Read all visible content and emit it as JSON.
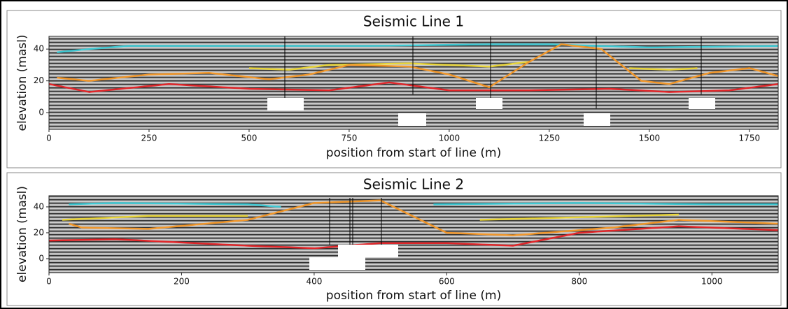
{
  "chart_data": [
    {
      "type": "line",
      "title": "Seismic Line 1",
      "xlabel": "position from start of line (m)",
      "ylabel": "elevation (masl)",
      "xlim": [
        0,
        1822
      ],
      "ylim": [
        -10.5,
        48
      ],
      "xticks": [
        0,
        250,
        500,
        750,
        1000,
        1250,
        1500,
        1750
      ],
      "yticks": [
        0,
        20,
        40
      ],
      "series": [
        {
          "color": "#3fc8d2",
          "x": [
            20,
            100,
            200,
            400,
            800,
            1100,
            1250,
            1500,
            1822
          ],
          "values": [
            38,
            40,
            42,
            42,
            42,
            43,
            43,
            41,
            42
          ]
        },
        {
          "color": "#e8d43a",
          "x": [
            500,
            600,
            700,
            900,
            1100,
            1200
          ],
          "values": [
            28,
            27,
            30,
            31,
            29,
            32
          ]
        },
        {
          "color": "#e8d43a",
          "x": [
            1450,
            1550,
            1620
          ],
          "values": [
            28,
            27,
            28
          ]
        },
        {
          "color": "#f0962a",
          "x": [
            20,
            100,
            250,
            400,
            550,
            650,
            750,
            900,
            1000,
            1100,
            1200,
            1280,
            1380,
            1480,
            1550,
            1650,
            1750,
            1822
          ],
          "values": [
            22,
            20,
            24,
            25,
            21,
            24,
            30,
            29,
            24,
            16,
            32,
            43,
            40,
            20,
            18,
            25,
            28,
            23
          ]
        },
        {
          "color": "#e0262a",
          "x": [
            0,
            100,
            300,
            500,
            700,
            850,
            1000,
            1200,
            1400,
            1550,
            1700,
            1822
          ],
          "values": [
            18,
            13,
            18,
            15,
            14,
            19,
            14,
            14,
            15,
            13,
            14,
            18
          ]
        }
      ]
    },
    {
      "type": "line",
      "title": "Seismic Line 2",
      "xlabel": "position from start of line (m)",
      "ylabel": "elevation (masl)",
      "xlim": [
        0,
        1100
      ],
      "ylim": [
        -10.8,
        48.6
      ],
      "xticks": [
        0,
        200,
        400,
        600,
        800,
        1000
      ],
      "yticks": [
        0,
        20,
        40
      ],
      "series": [
        {
          "color": "#3fc8d2",
          "x": [
            30,
            100,
            300,
            350
          ],
          "values": [
            42,
            43,
            42,
            40
          ]
        },
        {
          "color": "#3fc8d2",
          "x": [
            580,
            800,
            1000,
            1100
          ],
          "values": [
            42,
            43,
            42,
            42
          ]
        },
        {
          "color": "#e8d43a",
          "x": [
            20,
            150,
            300
          ],
          "values": [
            30,
            33,
            33
          ]
        },
        {
          "color": "#e8d43a",
          "x": [
            650,
            800,
            950
          ],
          "values": [
            30,
            32,
            34
          ]
        },
        {
          "color": "#f0962a",
          "x": [
            30,
            50,
            150,
            300,
            400,
            500,
            600,
            700,
            850,
            950,
            1100
          ],
          "values": [
            27,
            24,
            23,
            30,
            43,
            45,
            20,
            18,
            24,
            30,
            27
          ]
        },
        {
          "color": "#e0262a",
          "x": [
            0,
            100,
            300,
            400,
            500,
            600,
            700,
            800,
            950,
            1100
          ],
          "values": [
            14,
            15,
            10,
            8,
            12,
            12,
            10,
            20,
            25,
            22
          ]
        }
      ]
    }
  ]
}
